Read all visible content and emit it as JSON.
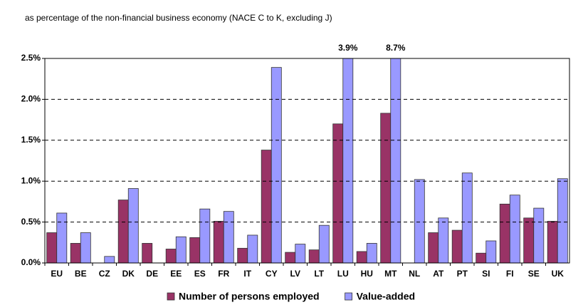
{
  "chart_data": {
    "type": "bar",
    "subtitle": "as percentage of the non-financial business economy (NACE C to K, excluding J)",
    "categories": [
      "EU",
      "BE",
      "CZ",
      "DK",
      "DE",
      "EE",
      "ES",
      "FR",
      "IT",
      "CY",
      "LV",
      "LT",
      "LU",
      "HU",
      "MT",
      "NL",
      "AT",
      "PT",
      "SI",
      "FI",
      "SE",
      "UK"
    ],
    "series": [
      {
        "name": "Number of persons employed",
        "color": "#993366",
        "values": [
          0.37,
          0.24,
          null,
          0.77,
          0.24,
          0.17,
          0.31,
          0.51,
          0.18,
          1.38,
          0.13,
          0.16,
          1.7,
          0.14,
          1.83,
          null,
          0.37,
          0.4,
          0.12,
          0.72,
          0.55,
          0.51
        ]
      },
      {
        "name": "Value-added",
        "color": "#9999ff",
        "values": [
          0.61,
          0.37,
          0.08,
          0.91,
          null,
          0.32,
          0.66,
          0.63,
          0.34,
          2.39,
          0.23,
          0.46,
          3.9,
          0.24,
          8.7,
          1.02,
          0.55,
          1.1,
          0.27,
          0.83,
          0.67,
          1.03
        ],
        "value_labels": [
          null,
          null,
          null,
          null,
          null,
          null,
          null,
          null,
          null,
          null,
          null,
          null,
          "3.9%",
          null,
          "8.7%",
          null,
          null,
          null,
          null,
          null,
          null,
          null
        ]
      }
    ],
    "ylim": [
      0,
      2.5
    ],
    "yticks": [
      {
        "value": 0,
        "label": "0.0%"
      },
      {
        "value": 0.5,
        "label": "0.5%"
      },
      {
        "value": 1.0,
        "label": "1.0%"
      },
      {
        "value": 1.5,
        "label": "1.5%"
      },
      {
        "value": 2.0,
        "label": "2.0%"
      },
      {
        "value": 2.5,
        "label": "2.5%"
      }
    ],
    "grid": true,
    "legend": "bottom"
  }
}
